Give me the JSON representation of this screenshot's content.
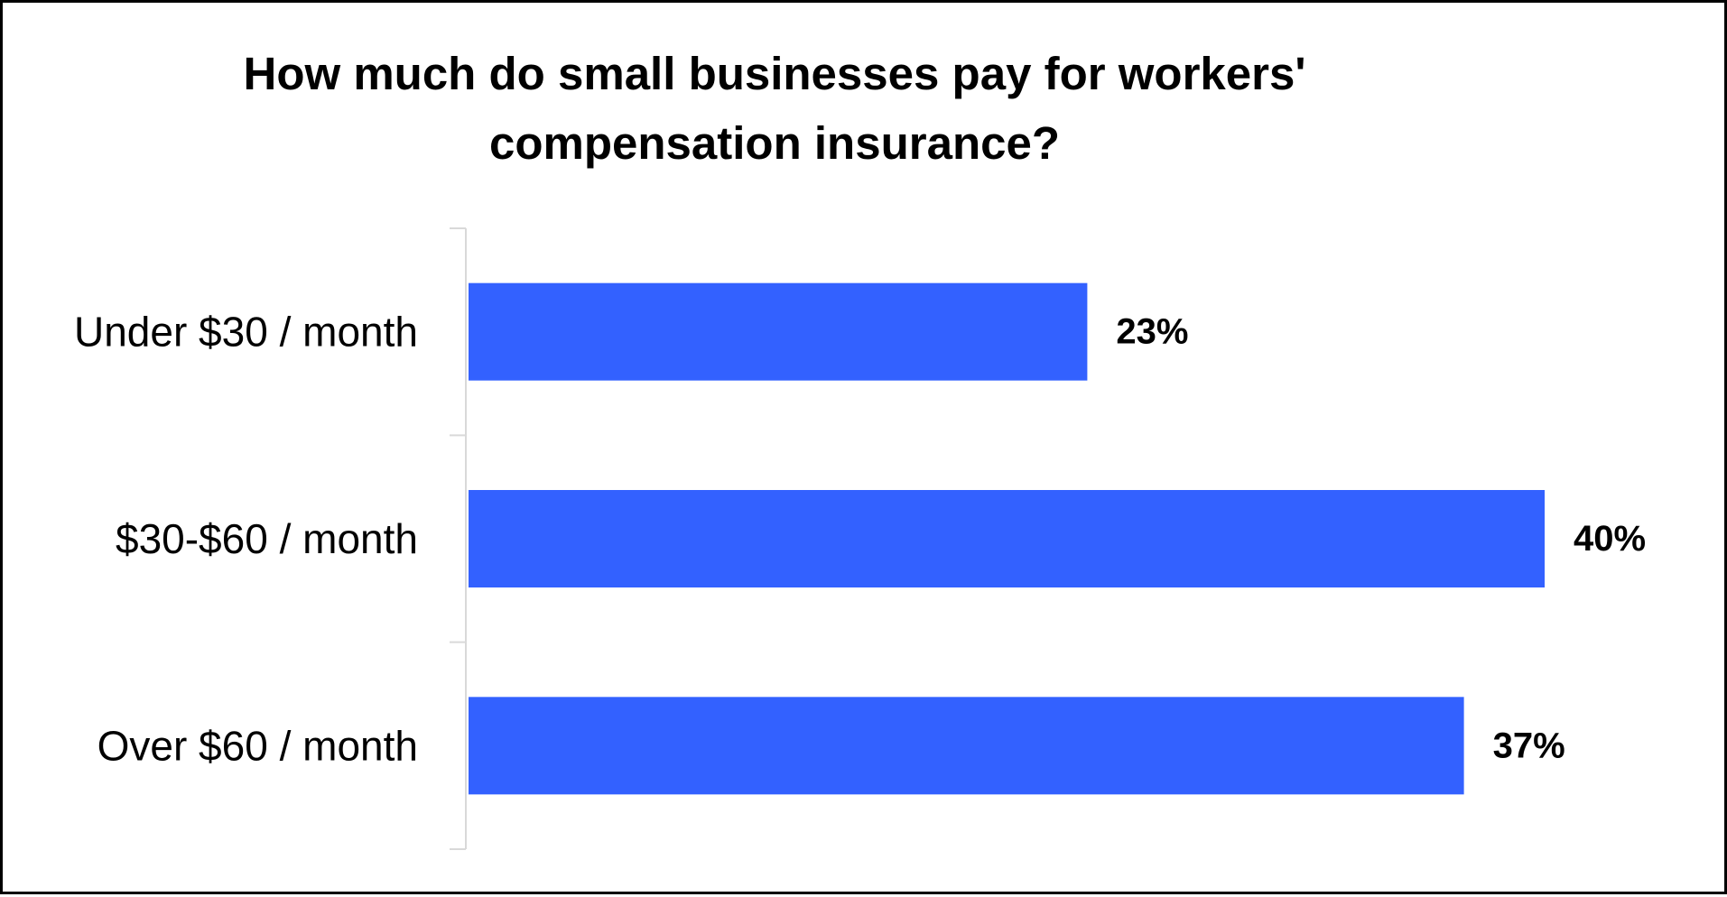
{
  "chart_data": {
    "type": "bar",
    "orientation": "horizontal",
    "title": "How much do small businesses pay for workers' compensation insurance?",
    "categories": [
      "Under $30 / month",
      "$30-$60 / month",
      "Over $60 / month"
    ],
    "values": [
      23,
      40,
      37
    ],
    "data_labels": [
      "23%",
      "40%",
      "37%"
    ],
    "xlabel": "",
    "ylabel": "",
    "xlim": [
      0,
      40
    ],
    "grid": false,
    "legend": "none",
    "bar_color": "#3361FF",
    "axis_color": "#D9D9D9"
  }
}
